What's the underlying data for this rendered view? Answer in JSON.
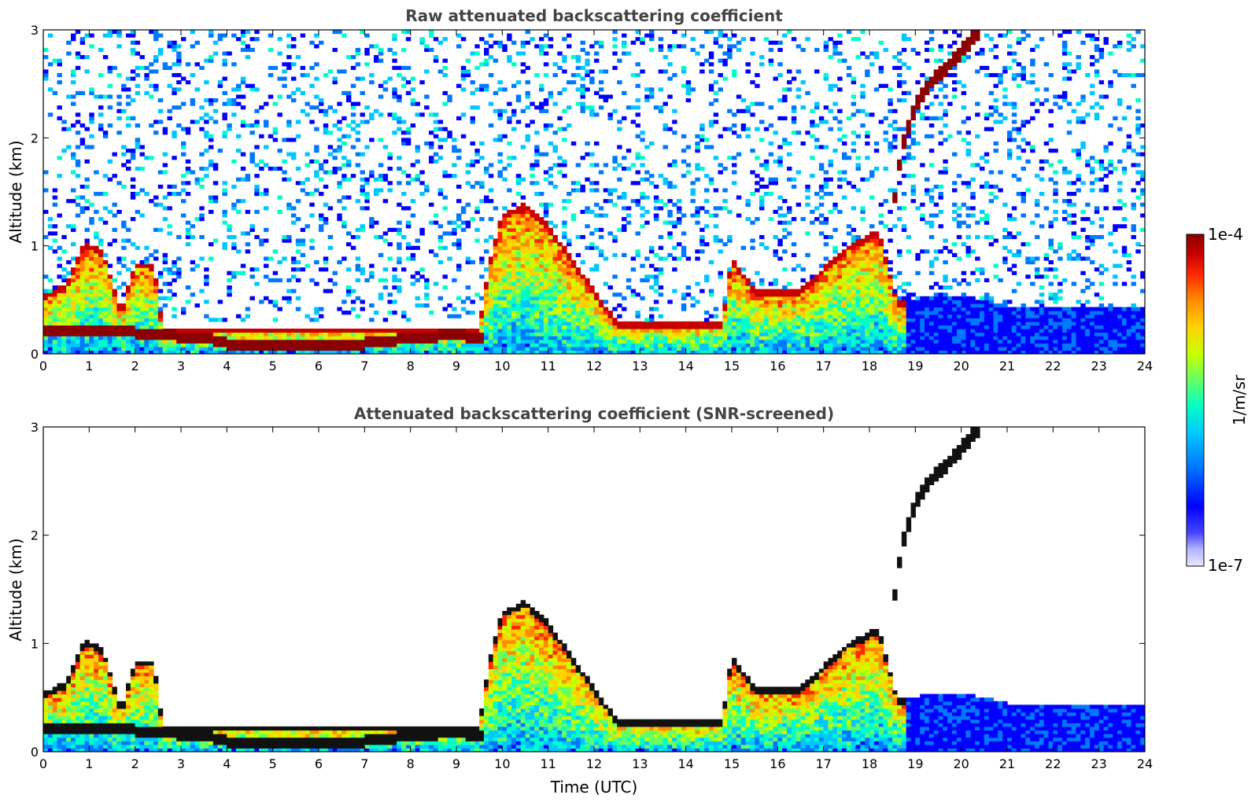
{
  "chart_data": [
    {
      "type": "heatmap",
      "title": "Raw attenuated backscattering coefficient",
      "xlabel": "",
      "ylabel": "Altitude (km)",
      "xlim": [
        0,
        24
      ],
      "ylim": [
        0,
        3
      ],
      "xticks": [
        "0",
        "1",
        "2",
        "3",
        "4",
        "5",
        "6",
        "7",
        "8",
        "9",
        "10",
        "11",
        "12",
        "13",
        "14",
        "15",
        "16",
        "17",
        "18",
        "19",
        "20",
        "21",
        "22",
        "23",
        "24"
      ],
      "yticks": [
        "0",
        "1",
        "2",
        "3"
      ],
      "grid": false,
      "features": {
        "surface_layer": [
          {
            "x": 0,
            "y": 0.22
          },
          {
            "x": 1.5,
            "y": 0.22
          },
          {
            "x": 2.5,
            "y": 0.18
          },
          {
            "x": 3.5,
            "y": 0.15
          },
          {
            "x": 4,
            "y": 0.1
          },
          {
            "x": 5,
            "y": 0.08
          },
          {
            "x": 6,
            "y": 0.08
          },
          {
            "x": 7,
            "y": 0.1
          },
          {
            "x": 8,
            "y": 0.15
          },
          {
            "x": 9,
            "y": 0.18
          },
          {
            "x": 9.5,
            "y": 0.15
          }
        ],
        "boundary_layer_top": [
          {
            "x": 0,
            "y": 0.55
          },
          {
            "x": 0.5,
            "y": 0.65
          },
          {
            "x": 0.9,
            "y": 1.05
          },
          {
            "x": 1.3,
            "y": 0.95
          },
          {
            "x": 1.7,
            "y": 0.4
          },
          {
            "x": 2.0,
            "y": 0.85
          },
          {
            "x": 2.4,
            "y": 0.85
          },
          {
            "x": 2.6,
            "y": 0.25
          },
          {
            "x": 9.5,
            "y": 0.25
          },
          {
            "x": 9.7,
            "y": 0.8
          },
          {
            "x": 10.0,
            "y": 1.3
          },
          {
            "x": 10.5,
            "y": 1.4
          },
          {
            "x": 11.0,
            "y": 1.2
          },
          {
            "x": 11.5,
            "y": 0.9
          },
          {
            "x": 12.0,
            "y": 0.6
          },
          {
            "x": 12.5,
            "y": 0.3
          },
          {
            "x": 14.8,
            "y": 0.3
          },
          {
            "x": 15.0,
            "y": 0.9
          },
          {
            "x": 15.5,
            "y": 0.6
          },
          {
            "x": 16.5,
            "y": 0.6
          },
          {
            "x": 17.0,
            "y": 0.8
          },
          {
            "x": 17.5,
            "y": 1.0
          },
          {
            "x": 18.2,
            "y": 1.15
          },
          {
            "x": 18.6,
            "y": 0.5
          },
          {
            "x": 20.0,
            "y": 0.55
          },
          {
            "x": 21.0,
            "y": 0.45
          },
          {
            "x": 24.0,
            "y": 0.45
          }
        ],
        "elevated_plume": [
          {
            "x": 18.5,
            "y": 1.3
          },
          {
            "x": 18.7,
            "y": 1.9
          },
          {
            "x": 19.0,
            "y": 2.3
          },
          {
            "x": 19.3,
            "y": 2.5
          },
          {
            "x": 19.8,
            "y": 2.7
          },
          {
            "x": 20.4,
            "y": 3.0
          }
        ]
      }
    },
    {
      "type": "heatmap",
      "title": "Attenuated backscattering coefficient (SNR-screened)",
      "xlabel": "Time (UTC)",
      "ylabel": "Altitude (km)",
      "xlim": [
        0,
        24
      ],
      "ylim": [
        0,
        3
      ],
      "xticks": [
        "0",
        "1",
        "2",
        "3",
        "4",
        "5",
        "6",
        "7",
        "8",
        "9",
        "10",
        "11",
        "12",
        "13",
        "14",
        "15",
        "16",
        "17",
        "18",
        "19",
        "20",
        "21",
        "22",
        "23",
        "24"
      ],
      "yticks": [
        "0",
        "1",
        "2",
        "3"
      ],
      "grid": false
    }
  ],
  "colorbar": {
    "label": "1/m/sr",
    "max_label": "1e-4",
    "min_label": "1e-7",
    "scale": "log",
    "colors": [
      "#e8e8ff",
      "#b4b4ff",
      "#5a5aff",
      "#0000ff",
      "#0078ff",
      "#00c8ff",
      "#00ffc8",
      "#64ff64",
      "#c8ff00",
      "#ffd200",
      "#ff8c00",
      "#ff2800",
      "#c80000",
      "#8b0000"
    ]
  }
}
